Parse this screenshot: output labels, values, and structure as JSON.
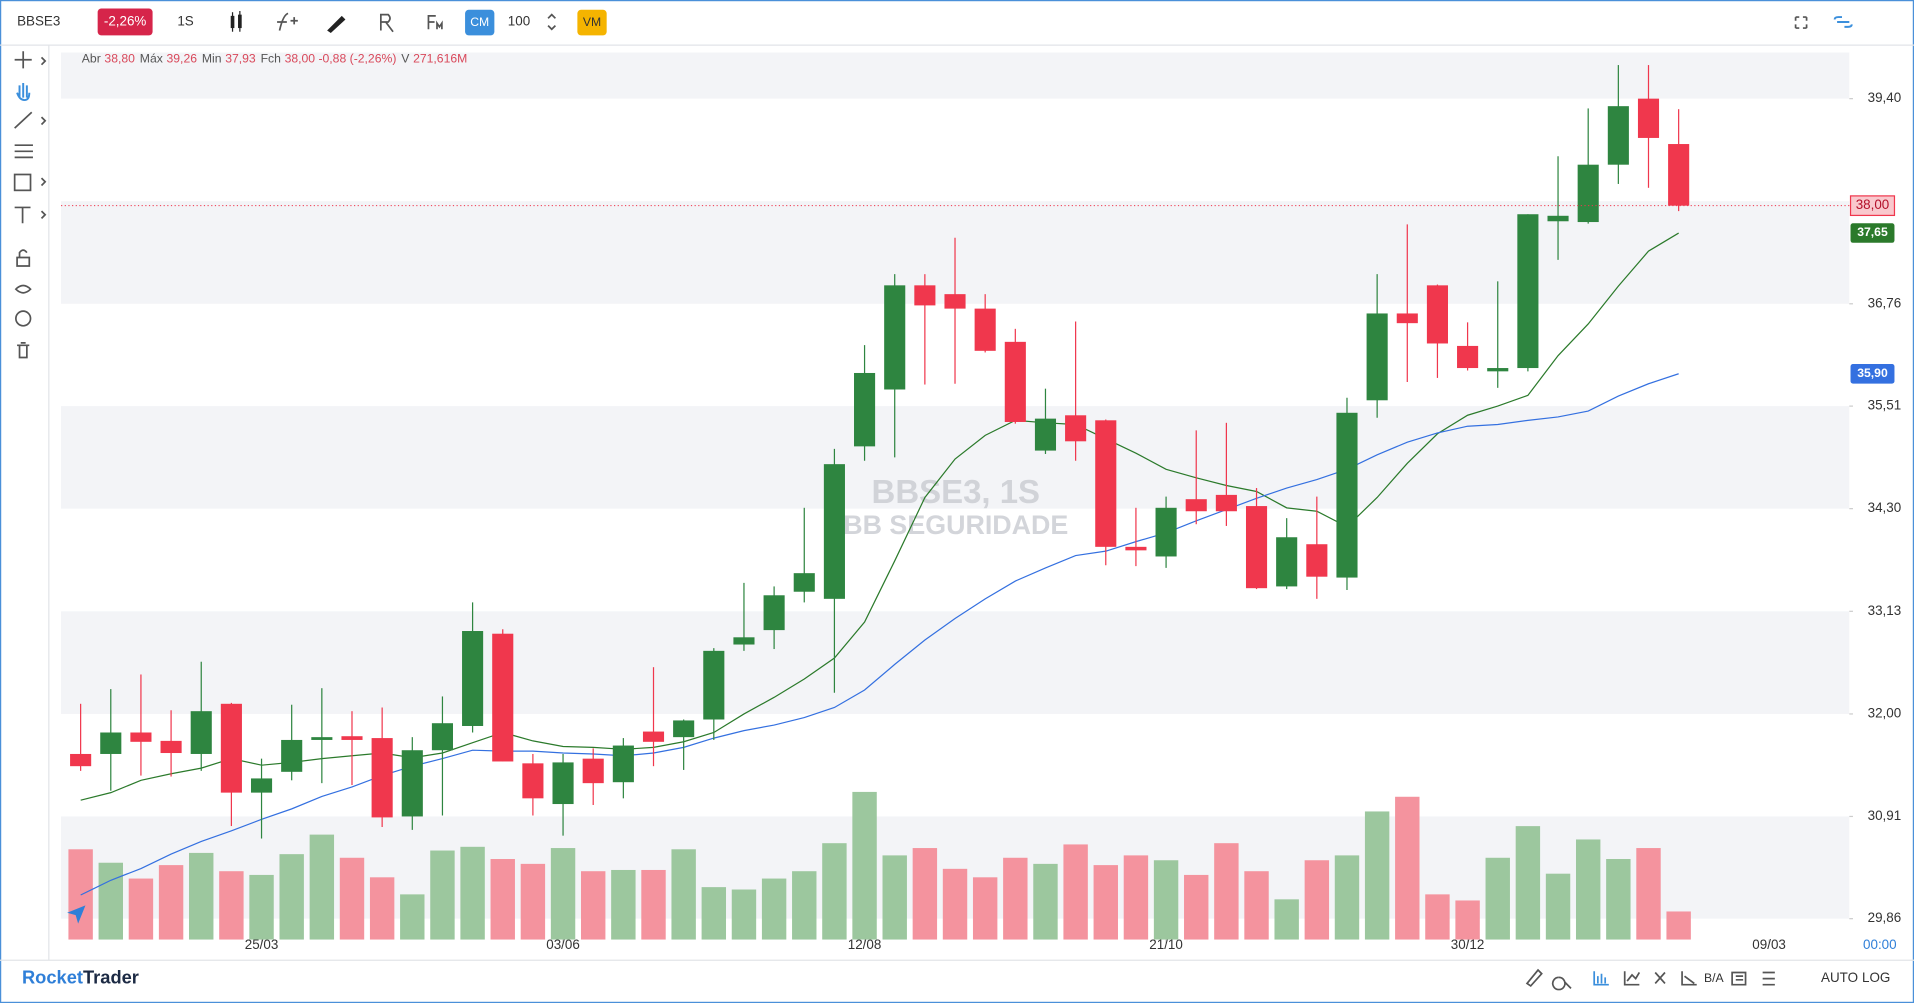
{
  "toolbar": {
    "symbol": "BBSE3",
    "change": "-2,26%",
    "interval": "1S",
    "cm": "CM",
    "quantity": "100",
    "vm": "VM"
  },
  "footer": {
    "brand_bold": "Rocket",
    "brand": "Trader",
    "ba": "B/A",
    "auto": "AUTO",
    "log": "LOG"
  },
  "chart_data": {
    "type": "candlestick",
    "legend": [
      {
        "label": "Abr",
        "value": "38,80"
      },
      {
        "label": "Máx",
        "value": "39,26"
      },
      {
        "label": "Min",
        "value": "37,93"
      },
      {
        "label": "Fch",
        "value": "38,00 -0,88 (-2,26%)"
      },
      {
        "label": "V",
        "value": "271,616M"
      }
    ],
    "study_count": "3",
    "watermark": "BBSE3, 1S",
    "watermark_sub": "BB SEGURIDADE",
    "time_label": "00:00",
    "xlim": [
      -0.65,
      58.66
    ],
    "xticks": [
      {
        "value": 6,
        "label": "25/03"
      },
      {
        "value": 16,
        "label": "03/06"
      },
      {
        "value": 26,
        "label": "12/08"
      },
      {
        "value": 36,
        "label": "21/10"
      },
      {
        "value": 46,
        "label": "30/12"
      },
      {
        "value": 56,
        "label": "09/03"
      }
    ],
    "ylim": [
      29.65,
      40.02
    ],
    "log_scale": true,
    "yticks": [
      {
        "value": 39.4,
        "label": "39,40"
      },
      {
        "value": 36.76,
        "label": "36,76"
      },
      {
        "value": 35.51,
        "label": "35,51"
      },
      {
        "value": 34.3,
        "label": "34,30"
      },
      {
        "value": 33.13,
        "label": "33,13"
      },
      {
        "value": 32.0,
        "label": "32,00"
      },
      {
        "value": 30.91,
        "label": "30,91"
      },
      {
        "value": 29.86,
        "label": "29,86"
      }
    ],
    "up_color": "#2e8540",
    "down_color": "#f0374d",
    "open": [
      31.57,
      31.57,
      31.8,
      31.71,
      31.57,
      32.11,
      31.16,
      31.38,
      31.72,
      31.76,
      31.74,
      30.91,
      31.61,
      31.87,
      32.88,
      31.47,
      31.04,
      31.52,
      31.27,
      31.81,
      31.75,
      31.94,
      32.76,
      32.92,
      33.35,
      33.27,
      35.03,
      35.71,
      36.99,
      36.88,
      36.7,
      36.29,
      34.98,
      35.4,
      35.34,
      33.86,
      33.75,
      34.41,
      34.46,
      34.33,
      33.41,
      33.89,
      33.51,
      35.58,
      36.64,
      36.99,
      36.24,
      35.93,
      35.97,
      37.8,
      37.79,
      38.53,
      39.4,
      38.8
    ],
    "high": [
      32.11,
      32.27,
      32.43,
      32.04,
      32.57,
      32.12,
      31.52,
      32.1,
      32.28,
      32.03,
      32.07,
      31.75,
      32.19,
      33.23,
      32.93,
      31.57,
      31.57,
      31.63,
      31.74,
      32.51,
      31.94,
      32.72,
      33.45,
      33.41,
      34.31,
      35.0,
      36.25,
      37.13,
      37.13,
      37.59,
      36.88,
      36.45,
      35.72,
      36.54,
      35.35,
      34.31,
      34.44,
      35.22,
      35.31,
      34.54,
      34.19,
      34.44,
      35.61,
      37.13,
      37.76,
      37.0,
      36.53,
      37.04,
      37.89,
      38.64,
      39.27,
      39.85,
      39.85,
      39.26
    ],
    "low": [
      31.39,
      31.18,
      31.34,
      31.33,
      31.39,
      30.81,
      30.68,
      31.29,
      31.26,
      31.24,
      30.8,
      30.77,
      30.92,
      31.8,
      31.49,
      30.92,
      30.71,
      31.03,
      31.1,
      31.44,
      31.4,
      31.72,
      32.69,
      32.71,
      33.23,
      32.23,
      34.86,
      34.9,
      35.77,
      35.78,
      36.16,
      35.3,
      34.94,
      34.86,
      33.65,
      33.64,
      33.62,
      34.12,
      34.1,
      33.38,
      33.38,
      33.27,
      33.37,
      35.37,
      35.8,
      35.85,
      35.94,
      35.73,
      35.93,
      37.31,
      37.77,
      38.28,
      38.23,
      37.93
    ],
    "close": [
      31.44,
      31.8,
      31.7,
      31.58,
      32.03,
      31.16,
      31.31,
      31.72,
      31.75,
      31.72,
      30.9,
      31.61,
      31.9,
      32.91,
      31.49,
      31.1,
      31.48,
      31.26,
      31.66,
      31.7,
      31.93,
      32.69,
      32.84,
      33.31,
      33.56,
      34.82,
      35.91,
      36.99,
      36.74,
      36.7,
      36.18,
      35.32,
      35.36,
      35.09,
      33.86,
      33.82,
      34.31,
      34.27,
      34.27,
      33.39,
      33.97,
      33.52,
      35.43,
      36.64,
      36.52,
      36.27,
      35.97,
      35.97,
      37.89,
      37.87,
      38.53,
      39.3,
      38.88,
      38.0
    ],
    "volume": {
      "values": [
        873,
        743,
        590,
        720,
        838,
        661,
        625,
        826,
        1015,
        791,
        602,
        437,
        861,
        897,
        779,
        732,
        885,
        661,
        673,
        673,
        873,
        507,
        484,
        590,
        661,
        932,
        1428,
        814,
        885,
        684,
        602,
        791,
        732,
        920,
        720,
        814,
        767,
        625,
        932,
        661,
        389,
        767,
        814,
        1239,
        1381,
        437,
        378,
        791,
        1097,
        637,
        968,
        779,
        885,
        271.616
      ],
      "up_color": "#9cc79e",
      "down_color": "#f4939e"
    },
    "moving_averages": [
      {
        "color": "#2b7a2b",
        "values": [
          31.08,
          31.16,
          31.29,
          31.36,
          31.42,
          31.52,
          31.45,
          31.48,
          31.52,
          31.55,
          31.58,
          31.53,
          31.58,
          31.69,
          31.8,
          31.71,
          31.65,
          31.64,
          31.62,
          31.64,
          31.7,
          31.8,
          32.0,
          32.18,
          32.38,
          32.61,
          33.01,
          33.7,
          34.43,
          34.88,
          35.16,
          35.34,
          35.31,
          35.29,
          35.12,
          34.95,
          34.76,
          34.66,
          34.57,
          34.5,
          34.31,
          34.27,
          34.09,
          34.43,
          34.83,
          35.18,
          35.4,
          35.51,
          35.64,
          36.12,
          36.51,
          36.98,
          37.42,
          37.65
        ],
        "last_label": {
          "value": 37.65,
          "label": "37,65"
        }
      },
      {
        "color": "#3470e0",
        "values": [
          30.1,
          30.25,
          30.37,
          30.52,
          30.65,
          30.76,
          30.88,
          30.99,
          31.12,
          31.22,
          31.34,
          31.44,
          31.52,
          31.61,
          31.6,
          31.6,
          31.58,
          31.57,
          31.55,
          31.58,
          31.64,
          31.74,
          31.82,
          31.88,
          31.96,
          32.07,
          32.26,
          32.54,
          32.81,
          33.05,
          33.27,
          33.47,
          33.62,
          33.76,
          33.81,
          33.92,
          34.02,
          34.16,
          34.29,
          34.42,
          34.54,
          34.64,
          34.76,
          34.93,
          35.08,
          35.19,
          35.27,
          35.29,
          35.34,
          35.38,
          35.45,
          35.63,
          35.78,
          35.9
        ],
        "last_label": {
          "value": 35.9,
          "label": "35,90"
        }
      }
    ],
    "last_price": {
      "value": 38.0,
      "label": "38,00",
      "color": "#f0374d"
    }
  }
}
